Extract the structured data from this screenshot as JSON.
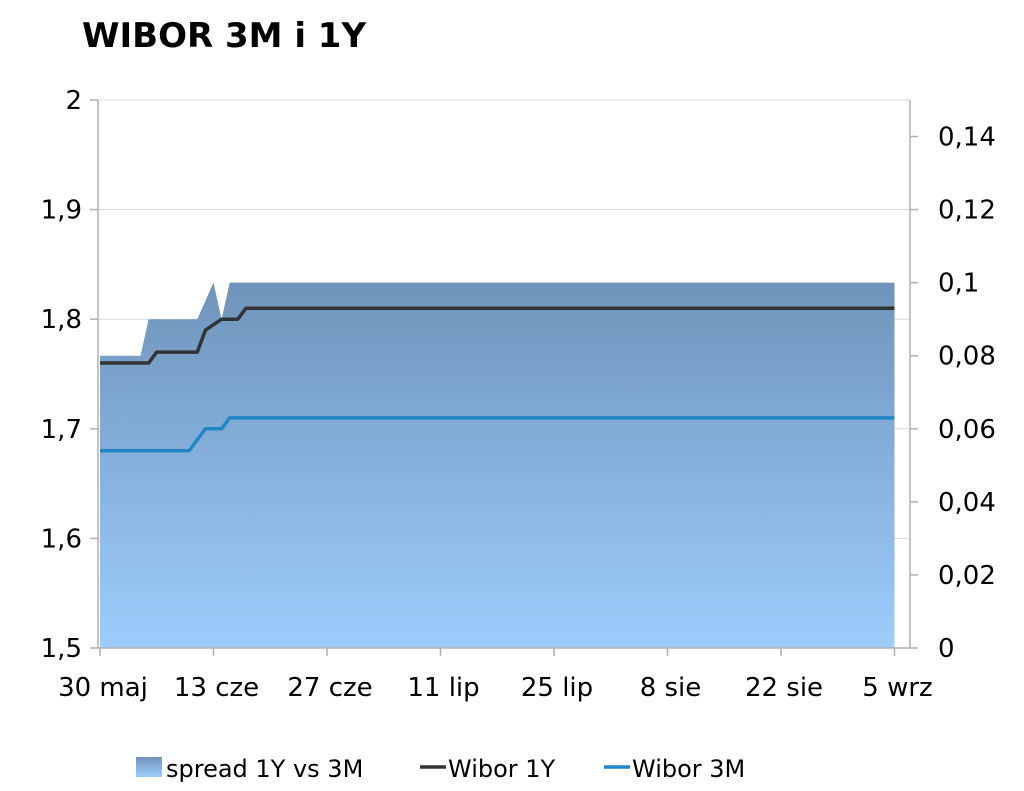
{
  "chart_data": {
    "type": "area+line",
    "title": "WIBOR 3M i 1Y",
    "y_left": {
      "min": 1.5,
      "max": 2.0,
      "ticks": [
        "1,5",
        "1,6",
        "1,7",
        "1,8",
        "1,9",
        "2"
      ]
    },
    "y_right": {
      "min": 0,
      "max": 0.15,
      "ticks": [
        "0",
        "0,02",
        "0,04",
        "0,06",
        "0,08",
        "0,1",
        "0,12",
        "0,14"
      ]
    },
    "x_labels": [
      "30 maj",
      "13 cze",
      "27 cze",
      "11 lip",
      "25 lip",
      "8 sie",
      "22 sie",
      "5 wrz"
    ],
    "grid": "horizontal",
    "legend_position": "bottom",
    "series": [
      {
        "name": "spread 1Y vs 3M",
        "kind": "area",
        "axis": "right",
        "color_top": "#6f94bb",
        "color_bottom": "#9dcdfd",
        "points": [
          [
            "30 maj",
            0.08
          ],
          [
            "4 cze",
            0.08
          ],
          [
            "5 cze",
            0.09
          ],
          [
            "11 cze",
            0.09
          ],
          [
            "13 cze",
            0.1
          ],
          [
            "14 cze",
            0.09
          ],
          [
            "15 cze",
            0.1
          ],
          [
            "5 wrz",
            0.1
          ]
        ]
      },
      {
        "name": "Wibor 1Y",
        "kind": "line",
        "axis": "left",
        "color": "#333333",
        "points": [
          [
            "30 maj",
            1.76
          ],
          [
            "5 cze",
            1.76
          ],
          [
            "6 cze",
            1.77
          ],
          [
            "11 cze",
            1.77
          ],
          [
            "12 cze",
            1.79
          ],
          [
            "14 cze",
            1.8
          ],
          [
            "16 cze",
            1.8
          ],
          [
            "17 cze",
            1.81
          ],
          [
            "5 wrz",
            1.81
          ]
        ]
      },
      {
        "name": "Wibor 3M",
        "kind": "line",
        "axis": "left",
        "color": "#1f87c8",
        "points": [
          [
            "30 maj",
            1.68
          ],
          [
            "10 cze",
            1.68
          ],
          [
            "12 cze",
            1.7
          ],
          [
            "14 cze",
            1.7
          ],
          [
            "15 cze",
            1.71
          ],
          [
            "5 wrz",
            1.71
          ]
        ]
      }
    ],
    "axis_color": "#b0b0b0",
    "grid_color": "#d9d9d9"
  }
}
